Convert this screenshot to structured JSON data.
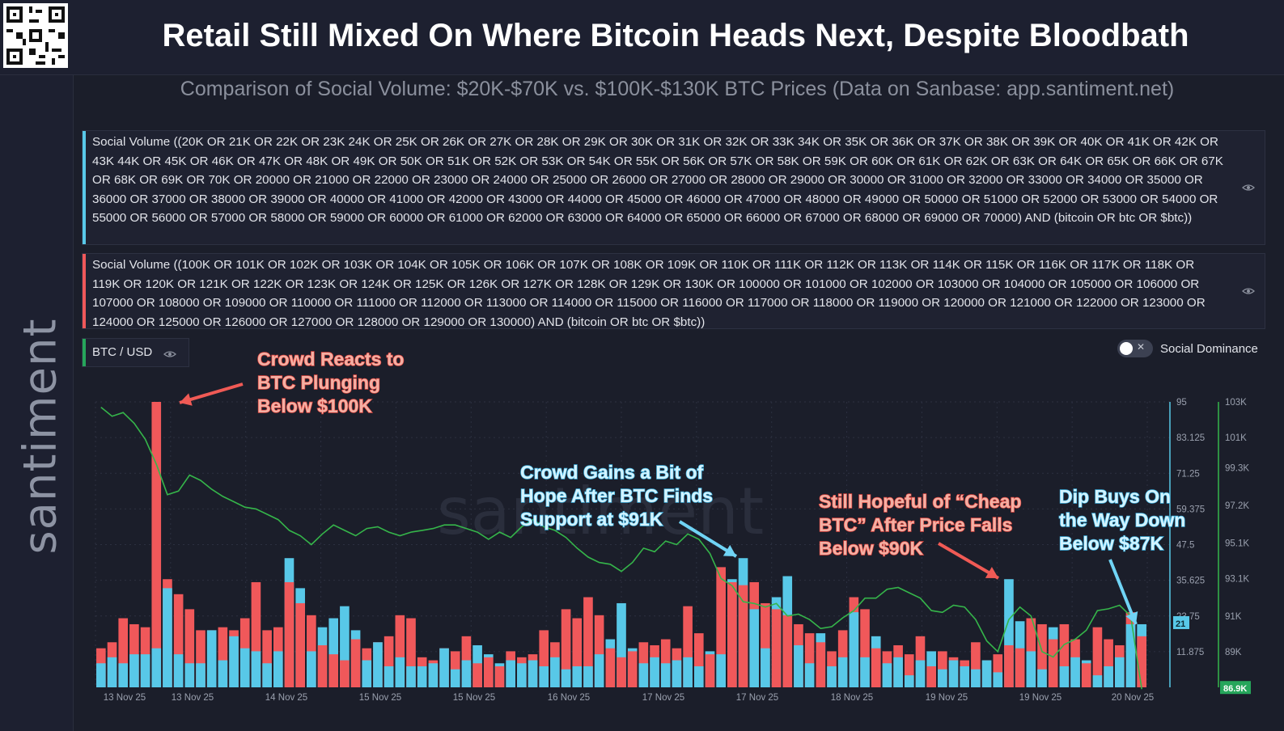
{
  "header": {
    "title": "Retail Still Mixed On Where Bitcoin Heads Next, Despite Bloodbath",
    "subtitle": "Comparison of Social Volume: $20K-$70K vs. $100K-$130K BTC Prices (Data on Sanbase: app.santiment.net)",
    "brand": "santiment"
  },
  "queries": {
    "q1": "Social Volume ((20K OR 21K OR 22K OR 23K 24K OR 25K OR 26K OR 27K OR 28K OR 29K OR 30K OR 31K OR 32K OR 33K 34K OR 35K OR 36K OR 37K OR 38K OR 39K OR 40K OR 41K OR 42K OR 43K 44K OR 45K OR 46K OR 47K OR 48K OR 49K OR 50K OR 51K OR 52K OR 53K OR 54K OR 55K OR 56K OR 57K OR 58K OR 59K OR 60K OR 61K OR 62K OR 63K OR 64K OR 65K OR 66K OR 67K OR 68K OR 69K OR 70K OR 20000 OR 21000 OR 22000 OR 23000 OR 24000 OR 25000 OR 26000 OR 27000 OR 28000 OR 29000 OR  30000 OR 31000 OR 32000 OR 33000 OR 34000 OR 35000 OR 36000 OR 37000 OR 38000 OR 39000 OR 40000 OR 41000 OR 42000 OR 43000 OR 44000 OR 45000 OR 46000 OR 47000 OR 48000 OR 49000 OR 50000 OR 51000 OR 52000 OR 53000 OR 54000 OR 55000 OR 56000 OR 57000 OR 58000 OR 59000 OR 60000 OR 61000 OR 62000 OR 63000 OR 64000 OR 65000 OR 66000 OR 67000 OR 68000 OR 69000 OR 70000) AND (bitcoin OR btc OR $btc))",
    "q2": "Social Volume ((100K OR 101K OR 102K OR 103K OR 104K OR 105K OR 106K OR 107K OR 108K OR 109K OR 110K OR 111K OR 112K OR 113K OR 114K OR 115K OR 116K OR 117K OR 118K OR 119K OR 120K OR 121K OR 122K OR 123K OR 124K OR 125K OR 126K OR 127K OR 128K OR 129K OR 130K OR 100000 OR 101000 OR 102000 OR 103000 OR 104000 OR 105000 OR 106000 OR 107000 OR 108000 OR 109000 OR 110000 OR 111000 OR 112000 OR 113000 OR 114000 OR 115000 OR 116000 OR 117000 OR 118000 OR 119000 OR 120000 OR 121000 OR 122000 OR 123000 OR 124000 OR 125000 OR 126000 OR 127000 OR 128000 OR 129000 OR 130000) AND (bitcoin OR btc OR $btc))"
  },
  "controls": {
    "btc_label": "BTC / USD",
    "social_dominance_label": "Social Dominance",
    "toggle_x": "✕"
  },
  "colors": {
    "red_series": "#f0585a",
    "blue_series": "#58c8e8",
    "price_line": "#35b54a",
    "annotation_red_text": "#f3b0a4",
    "annotation_blue_text": "#d4f3ff"
  },
  "annotations": [
    {
      "lines": [
        "Crowd Reacts to",
        "BTC Plunging",
        "Below $100K"
      ],
      "color": "red"
    },
    {
      "lines": [
        "Crowd Gains a Bit of",
        "Hope After BTC Finds",
        "Support at $91K"
      ],
      "color": "blue"
    },
    {
      "lines": [
        "Still Hopeful of “Cheap",
        "BTC” After Price Falls",
        "Below $90K"
      ],
      "color": "red"
    },
    {
      "lines": [
        "Dip Buys On",
        "the Way Down",
        "Below $87K"
      ],
      "color": "blue"
    }
  ],
  "chart_data": {
    "type": "bar",
    "x_tick_labels": [
      "13 Nov 25",
      "13 Nov 25",
      "14 Nov 25",
      "15 Nov 25",
      "15 Nov 25",
      "16 Nov 25",
      "17 Nov 25",
      "17 Nov 25",
      "18 Nov 25",
      "19 Nov 25",
      "19 Nov 25",
      "20 Nov 25"
    ],
    "y_left_ticks": [
      "95",
      "83.125",
      "71.25",
      "59.375",
      "47.5",
      "35.625",
      "23.75",
      "11.875"
    ],
    "y_right_ticks": [
      "103K",
      "101K",
      "99.3K",
      "97.2K",
      "95.1K",
      "93.1K",
      "91K",
      "89K"
    ],
    "y_left_range": [
      0,
      95
    ],
    "y_right_range": [
      87000,
      103000
    ],
    "last_value_badges": {
      "social_volume": "21",
      "price": "86.9K"
    },
    "series": [
      {
        "name": "Social Volume ($100K-$130K)",
        "color": "red",
        "values": [
          13,
          15,
          23,
          21,
          20,
          95,
          36,
          31,
          26,
          19,
          19,
          20,
          19,
          23,
          35,
          19,
          20,
          35,
          28,
          24,
          14,
          11,
          9,
          16,
          13,
          15,
          17,
          24,
          23,
          10,
          9,
          13,
          12,
          17,
          8,
          10,
          7,
          12,
          10,
          11,
          19,
          15,
          26,
          23,
          30,
          24,
          13,
          10,
          12,
          15,
          14,
          16,
          13,
          27,
          18,
          11,
          40,
          35,
          34,
          35,
          28,
          26,
          24,
          21,
          18,
          15,
          12,
          19,
          30,
          26,
          13,
          12,
          14,
          11,
          17,
          7,
          12,
          10,
          9,
          15,
          9,
          11,
          14,
          13,
          23,
          21,
          16,
          21,
          16,
          8,
          20,
          16,
          14,
          25,
          17
        ]
      },
      {
        "name": "Social Volume ($20K-$70K)",
        "color": "blue",
        "values": [
          8,
          10,
          8,
          11,
          11,
          13,
          33,
          11,
          8,
          8,
          19,
          9,
          17,
          13,
          12,
          8,
          12,
          43,
          33,
          12,
          20,
          23,
          27,
          19,
          9,
          15,
          7,
          10,
          7,
          7,
          8,
          13,
          6,
          9,
          14,
          11,
          8,
          9,
          8,
          9,
          7,
          10,
          6,
          7,
          7,
          11,
          16,
          28,
          13,
          8,
          10,
          8,
          9,
          10,
          7,
          12,
          11,
          36,
          43,
          26,
          13,
          30,
          37,
          14,
          8,
          18,
          7,
          10,
          25,
          10,
          17,
          8,
          10,
          4,
          9,
          12,
          6,
          9,
          7,
          6,
          9,
          5,
          36,
          22,
          12,
          6,
          20,
          7,
          10,
          9,
          4,
          7,
          10,
          21,
          21
        ]
      }
    ],
    "price_series": {
      "name": "BTC / USD",
      "values": [
        102700,
        102200,
        102400,
        101800,
        100900,
        99500,
        97800,
        98000,
        98900,
        98600,
        98100,
        97700,
        97400,
        97100,
        97000,
        96700,
        96400,
        95800,
        95500,
        95000,
        95600,
        96100,
        95800,
        95500,
        95900,
        96000,
        95700,
        95500,
        95700,
        95800,
        95900,
        96100,
        96100,
        95900,
        95700,
        95300,
        95700,
        95400,
        96000,
        96400,
        96000,
        95800,
        95400,
        94800,
        94300,
        94000,
        93900,
        93500,
        94000,
        94800,
        94600,
        95200,
        95000,
        95600,
        95300,
        94500,
        93100,
        92700,
        91800,
        91700,
        91500,
        91700,
        91000,
        91100,
        90800,
        90300,
        90400,
        90900,
        91300,
        92000,
        92000,
        92500,
        92600,
        92300,
        92000,
        91300,
        91200,
        91600,
        91500,
        90800,
        89600,
        89000,
        90800,
        91500,
        91000,
        89000,
        88700,
        89400,
        89700,
        90200,
        91300,
        91400,
        91600,
        91000,
        86900
      ]
    }
  }
}
